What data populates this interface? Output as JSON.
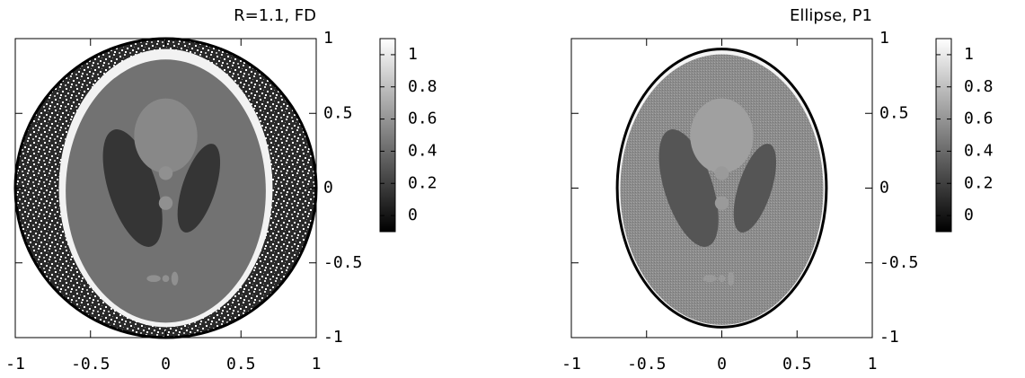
{
  "chart_data": [
    {
      "type": "image",
      "title": "R=1.1, FD",
      "xlim": [
        -1,
        1
      ],
      "ylim": [
        -1,
        1
      ],
      "xticks": [
        -1,
        -0.5,
        0,
        0.5,
        1
      ],
      "yticks": [
        -1,
        -0.5,
        0,
        0.5,
        1
      ],
      "colorbar": {
        "clim": [
          -0.1,
          1.1
        ],
        "ticks": [
          0,
          0.2,
          0.4,
          0.6,
          0.8,
          1
        ]
      }
    },
    {
      "type": "image",
      "title": "Ellipse, P1",
      "xlim": [
        -1,
        1
      ],
      "ylim": [
        -1,
        1
      ],
      "xticks": [
        -1,
        -0.5,
        0,
        0.5,
        1
      ],
      "yticks": [
        -1,
        -0.5,
        0,
        0.5,
        1
      ],
      "colorbar": {
        "clim": [
          -0.1,
          1.1
        ],
        "ticks": [
          0,
          0.2,
          0.4,
          0.6,
          0.8,
          1
        ]
      }
    }
  ]
}
